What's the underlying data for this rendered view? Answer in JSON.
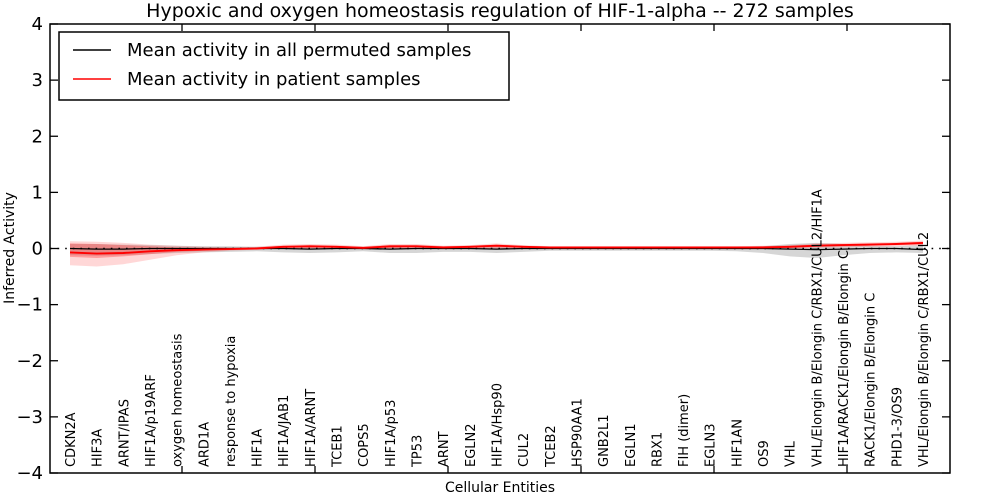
{
  "figure": {
    "title": "Hypoxic and oxygen homeostasis regulation of HIF-1-alpha -- 272 samples",
    "xlabel": "Cellular Entities",
    "ylabel": "Inferred Activity"
  },
  "legend": {
    "position": "upper left",
    "items": [
      {
        "label": "Mean activity in all permuted samples",
        "color": "#000000"
      },
      {
        "label": "Mean activity in patient samples",
        "color": "#ff0000"
      }
    ]
  },
  "chart_data": {
    "type": "line",
    "title": "Hypoxic and oxygen homeostasis regulation of HIF-1-alpha -- 272 samples",
    "xlabel": "Cellular Entities",
    "ylabel": "Inferred Activity",
    "ylim": [
      -4,
      4
    ],
    "yticks": [
      4,
      3,
      2,
      1,
      0,
      -1,
      -2,
      -3,
      -4
    ],
    "grid": false,
    "legend_position": "upper left",
    "zero_line": {
      "style": "dotted",
      "color": "#000000",
      "y": 0
    },
    "categories": [
      "CDKN2A",
      "HIF3A",
      "ARNT/IPAS",
      "HIF1A/p19ARF",
      "oxygen homeostasis",
      "ARD1A",
      "response to hypoxia",
      "HIF1A",
      "HIF1A/JAB1",
      "HIF1A/ARNT",
      "TCEB1",
      "COPS5",
      "HIF1A/p53",
      "TP53",
      "ARNT",
      "EGLN2",
      "HIF1A/Hsp90",
      "CUL2",
      "TCEB2",
      "HSP90AA1",
      "GNB2L1",
      "EGLN1",
      "RBX1",
      "FIH (dimer)",
      "EGLN3",
      "HIF1AN",
      "OS9",
      "VHL",
      "VHL/Elongin B/Elongin C/RBX1/CUL2/HIF1A",
      "HIF1A/RACK1/Elongin B/Elongin C",
      "RACK1/Elongin B/Elongin C",
      "PHD1-3/OS9",
      "VHL/Elongin B/Elongin C/RBX1/CUL2"
    ],
    "series": [
      {
        "name": "Mean activity in all permuted samples",
        "color": "#000000",
        "values": [
          0.0,
          -0.01,
          -0.01,
          0.0,
          0.0,
          0.0,
          0.0,
          0.0,
          0.0,
          -0.01,
          0.0,
          0.0,
          -0.01,
          0.0,
          0.0,
          0.0,
          -0.01,
          0.0,
          0.0,
          0.0,
          0.0,
          0.0,
          0.0,
          0.0,
          0.0,
          0.0,
          0.0,
          -0.01,
          -0.02,
          -0.01,
          0.0,
          0.0,
          -0.02
        ]
      },
      {
        "name": "Mean activity in patient samples",
        "color": "#ff0000",
        "values": [
          -0.07,
          -0.09,
          -0.08,
          -0.05,
          -0.03,
          -0.02,
          -0.01,
          0.0,
          0.03,
          0.04,
          0.03,
          0.01,
          0.04,
          0.04,
          0.02,
          0.03,
          0.05,
          0.03,
          0.02,
          0.02,
          0.02,
          0.02,
          0.02,
          0.02,
          0.02,
          0.02,
          0.02,
          0.03,
          0.05,
          0.06,
          0.07,
          0.08,
          0.1
        ]
      }
    ],
    "bands": [
      {
        "name": "permuted-samples-std-band",
        "color": "#999999",
        "opacity": 0.4,
        "upper": [
          0.08,
          0.08,
          0.07,
          0.06,
          0.05,
          0.04,
          0.04,
          0.03,
          0.04,
          0.04,
          0.04,
          0.03,
          0.04,
          0.04,
          0.03,
          0.03,
          0.04,
          0.03,
          0.03,
          0.03,
          0.03,
          0.03,
          0.03,
          0.03,
          0.03,
          0.03,
          0.04,
          0.08,
          0.1,
          0.08,
          0.05,
          0.04,
          0.06
        ],
        "lower": [
          -0.12,
          -0.13,
          -0.12,
          -0.1,
          -0.08,
          -0.07,
          -0.06,
          -0.05,
          -0.07,
          -0.08,
          -0.07,
          -0.05,
          -0.08,
          -0.08,
          -0.06,
          -0.06,
          -0.08,
          -0.06,
          -0.04,
          -0.04,
          -0.04,
          -0.04,
          -0.04,
          -0.04,
          -0.04,
          -0.05,
          -0.08,
          -0.14,
          -0.17,
          -0.12,
          -0.08,
          -0.07,
          -0.08
        ]
      },
      {
        "name": "patient-samples-outer-band",
        "color": "#ff2222",
        "opacity": 0.18,
        "upper": [
          0.13,
          0.12,
          0.1,
          0.07,
          0.05,
          0.03,
          0.02,
          0.03,
          0.07,
          0.08,
          0.07,
          0.04,
          0.08,
          0.08,
          0.05,
          0.06,
          0.09,
          0.06,
          0.04,
          0.04,
          0.04,
          0.04,
          0.04,
          0.04,
          0.04,
          0.04,
          0.05,
          0.06,
          0.09,
          0.1,
          0.11,
          0.12,
          0.14
        ],
        "lower": [
          -0.3,
          -0.32,
          -0.28,
          -0.2,
          -0.12,
          -0.07,
          -0.04,
          -0.02,
          0.0,
          0.0,
          0.0,
          -0.01,
          0.0,
          0.0,
          -0.01,
          -0.01,
          0.0,
          -0.01,
          -0.01,
          -0.01,
          -0.01,
          -0.01,
          -0.01,
          -0.01,
          -0.01,
          -0.01,
          -0.01,
          0.0,
          0.01,
          0.02,
          0.03,
          0.04,
          0.05
        ]
      },
      {
        "name": "patient-samples-inner-band",
        "color": "#ff2222",
        "opacity": 0.32,
        "upper": [
          0.09,
          0.08,
          0.06,
          0.04,
          0.02,
          0.01,
          0.01,
          0.02,
          0.05,
          0.06,
          0.05,
          0.03,
          0.06,
          0.06,
          0.04,
          0.05,
          0.07,
          0.05,
          0.03,
          0.03,
          0.03,
          0.03,
          0.03,
          0.03,
          0.03,
          0.03,
          0.04,
          0.05,
          0.07,
          0.08,
          0.09,
          0.1,
          0.12
        ],
        "lower": [
          -0.15,
          -0.17,
          -0.14,
          -0.1,
          -0.06,
          -0.04,
          -0.02,
          -0.01,
          0.01,
          0.02,
          0.01,
          0.0,
          0.01,
          0.02,
          0.0,
          0.01,
          0.02,
          0.01,
          0.0,
          0.0,
          0.0,
          0.0,
          0.0,
          0.0,
          0.0,
          0.0,
          0.01,
          0.01,
          0.03,
          0.04,
          0.05,
          0.06,
          0.07
        ]
      }
    ]
  }
}
